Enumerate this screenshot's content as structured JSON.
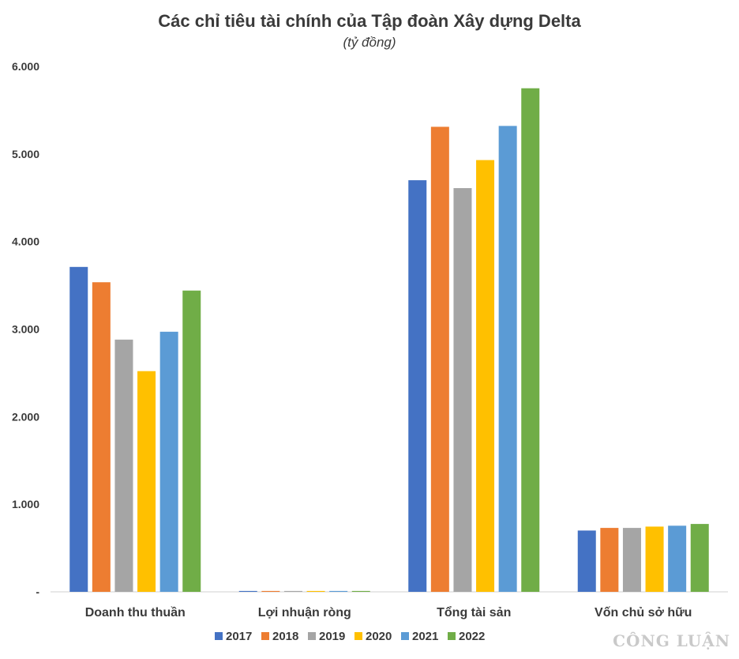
{
  "chart_data": {
    "type": "bar",
    "title": "Các chỉ tiêu tài chính của Tập đoàn Xây dựng Delta",
    "subtitle": "(tỷ đồng)",
    "categories": [
      "Doanh thu thuần",
      "Lợi nhuận ròng",
      "Tổng tài sản",
      "Vốn chủ sở hữu"
    ],
    "series": [
      {
        "name": "2017",
        "color": "#4472c4",
        "values": [
          3710,
          10,
          4700,
          700
        ]
      },
      {
        "name": "2018",
        "color": "#ed7d31",
        "values": [
          3535,
          10,
          5310,
          730
        ]
      },
      {
        "name": "2019",
        "color": "#a5a5a5",
        "values": [
          2880,
          10,
          4610,
          730
        ]
      },
      {
        "name": "2020",
        "color": "#ffc000",
        "values": [
          2520,
          10,
          4930,
          745
        ]
      },
      {
        "name": "2021",
        "color": "#5b9bd5",
        "values": [
          2970,
          10,
          5320,
          755
        ]
      },
      {
        "name": "2022",
        "color": "#70ad47",
        "values": [
          3440,
          10,
          5750,
          775
        ]
      }
    ],
    "yticks": [
      "-",
      "1.000",
      "2.000",
      "3.000",
      "4.000",
      "5.000",
      "6.000"
    ],
    "ylim": [
      0,
      6000
    ],
    "grid": false,
    "legend_position": "bottom"
  },
  "watermark": "CÔNG LUẬN"
}
